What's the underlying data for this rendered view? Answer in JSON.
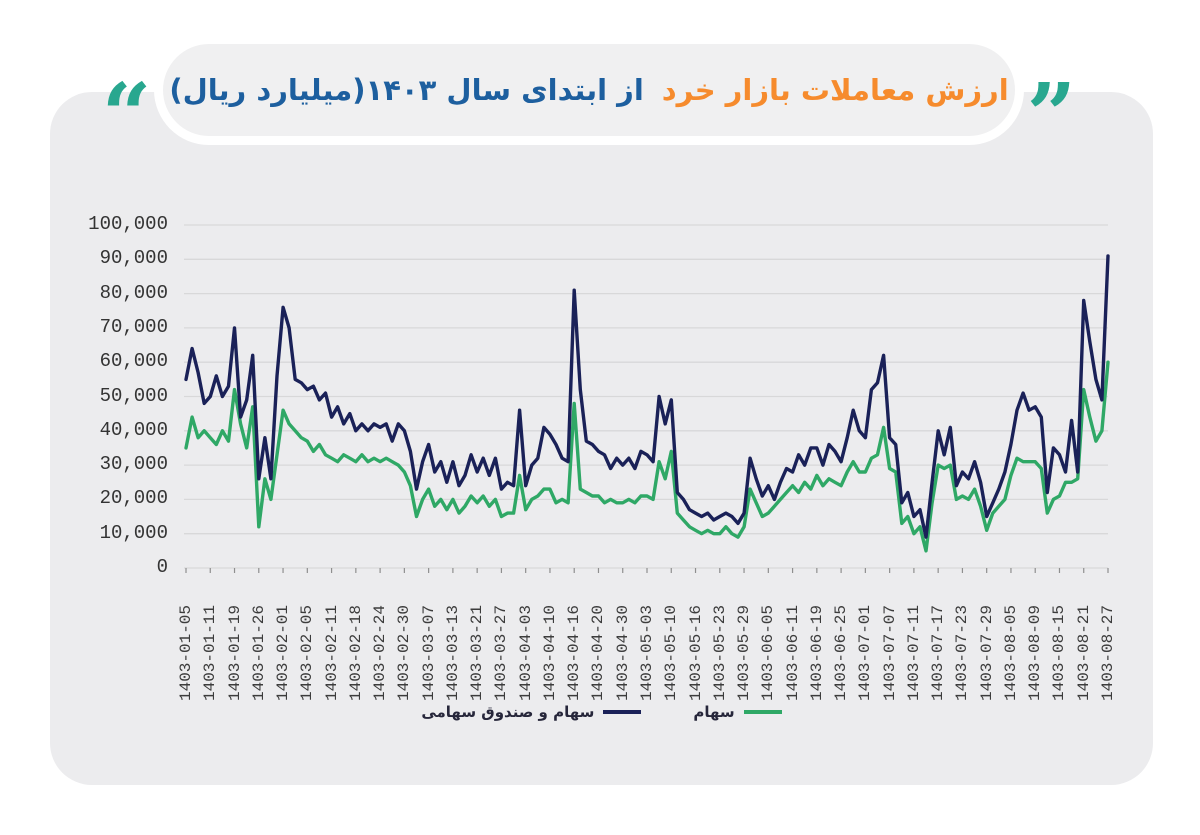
{
  "title": {
    "quote_right": "”",
    "quote_left": "“",
    "highlight": "ارزش معاملات بازار خرد",
    "rest": "از ابتدای سال ۱۴۰۳(میلیارد ریال)",
    "highlight_color": "#f68b2d",
    "rest_color": "#1d5f9f",
    "quote_color": "#28a78f"
  },
  "colors": {
    "page_background": "#ffffff",
    "card_background": "#ececee",
    "pill_background": "#f0f0f1",
    "gridline": "#d8d8d9",
    "tick_text": "#3c3c3c",
    "series_fund": "#1a2158",
    "series_stock": "#2fa866"
  },
  "chart_data": {
    "type": "line",
    "title": "ارزش معاملات بازار خرد از ابتدای سال ۱۴۰۳(میلیارد ریال)",
    "xlabel": "",
    "ylabel": "",
    "unit": "میلیارد ریال",
    "ylim": [
      0,
      100000
    ],
    "yticks": [
      0,
      10000,
      20000,
      30000,
      40000,
      50000,
      60000,
      70000,
      80000,
      90000,
      100000
    ],
    "grid": "horizontal",
    "grid_color": "#d8d8d9",
    "legend_position": "bottom",
    "tick_every": 4,
    "x_tick_labels": [
      "1403-01-05",
      "1403-01-11",
      "1403-01-19",
      "1403-01-26",
      "1403-02-01",
      "1403-02-05",
      "1403-02-11",
      "1403-02-18",
      "1403-02-24",
      "1403-02-30",
      "1403-03-07",
      "1403-03-13",
      "1403-03-21",
      "1403-03-27",
      "1403-04-03",
      "1403-04-10",
      "1403-04-16",
      "1403-04-20",
      "1403-04-30",
      "1403-05-03",
      "1403-05-10",
      "1403-05-16",
      "1403-05-23",
      "1403-05-29",
      "1403-06-05",
      "1403-06-11",
      "1403-06-19",
      "1403-06-25",
      "1403-07-01",
      "1403-07-07",
      "1403-07-11",
      "1403-07-17",
      "1403-07-23",
      "1403-07-29",
      "1403-08-05",
      "1403-08-09",
      "1403-08-15",
      "1403-08-21",
      "1403-08-27"
    ],
    "series": [
      {
        "name": "سهام و صندوق سهامی",
        "color": "#1a2158",
        "values": [
          55000,
          64000,
          57000,
          48000,
          50000,
          56000,
          50000,
          53000,
          70000,
          44000,
          49000,
          62000,
          26000,
          38000,
          26000,
          56000,
          76000,
          70000,
          55000,
          54000,
          52000,
          53000,
          49000,
          51000,
          44000,
          47000,
          42000,
          45000,
          40000,
          42000,
          40000,
          42000,
          41000,
          42000,
          37000,
          42000,
          40000,
          34000,
          23000,
          31000,
          36000,
          28000,
          31000,
          25000,
          31000,
          24000,
          27000,
          33000,
          28000,
          32000,
          27000,
          32000,
          23000,
          25000,
          24000,
          46000,
          24000,
          30000,
          32000,
          41000,
          39000,
          36000,
          32000,
          31000,
          81000,
          52000,
          37000,
          36000,
          34000,
          33000,
          29000,
          32000,
          30000,
          32000,
          29000,
          34000,
          33000,
          31000,
          50000,
          42000,
          49000,
          22000,
          20000,
          17000,
          16000,
          15000,
          16000,
          14000,
          15000,
          16000,
          15000,
          13000,
          16000,
          32000,
          26000,
          21000,
          24000,
          20000,
          25000,
          29000,
          28000,
          33000,
          30000,
          35000,
          35000,
          30000,
          36000,
          34000,
          31000,
          38000,
          46000,
          40000,
          38000,
          52000,
          54000,
          62000,
          38000,
          36000,
          19000,
          22000,
          15000,
          17000,
          9000,
          25000,
          40000,
          33000,
          41000,
          24000,
          28000,
          26000,
          31000,
          25000,
          15000,
          19000,
          23000,
          28000,
          36000,
          46000,
          51000,
          46000,
          47000,
          44000,
          22000,
          35000,
          33000,
          28000,
          43000,
          28000,
          78000,
          66000,
          55000,
          49000,
          91000
        ]
      },
      {
        "name": "سهام",
        "color": "#2fa866",
        "values": [
          35000,
          44000,
          38000,
          40000,
          38000,
          36000,
          40000,
          37000,
          52000,
          42000,
          35000,
          47000,
          12000,
          26000,
          20000,
          33000,
          46000,
          42000,
          40000,
          38000,
          37000,
          34000,
          36000,
          33000,
          32000,
          31000,
          33000,
          32000,
          31000,
          33000,
          31000,
          32000,
          31000,
          32000,
          31000,
          30000,
          28000,
          24000,
          15000,
          20000,
          23000,
          18000,
          20000,
          17000,
          20000,
          16000,
          18000,
          21000,
          19000,
          21000,
          18000,
          20000,
          15000,
          16000,
          16000,
          27000,
          17000,
          20000,
          21000,
          23000,
          23000,
          19000,
          20000,
          19000,
          48000,
          23000,
          22000,
          21000,
          21000,
          19000,
          20000,
          19000,
          19000,
          20000,
          19000,
          21000,
          21000,
          20000,
          31000,
          26000,
          34000,
          16000,
          14000,
          12000,
          11000,
          10000,
          11000,
          10000,
          10000,
          12000,
          10000,
          9000,
          12000,
          23000,
          19000,
          15000,
          16000,
          18000,
          20000,
          22000,
          24000,
          22000,
          25000,
          23000,
          27000,
          24000,
          26000,
          25000,
          24000,
          28000,
          31000,
          28000,
          28000,
          32000,
          33000,
          41000,
          29000,
          28000,
          13000,
          15000,
          10000,
          12000,
          5000,
          19000,
          30000,
          29000,
          30000,
          20000,
          21000,
          20000,
          23000,
          18000,
          11000,
          16000,
          18000,
          20000,
          27000,
          32000,
          31000,
          31000,
          31000,
          29000,
          16000,
          20000,
          21000,
          25000,
          25000,
          26000,
          52000,
          44000,
          37000,
          40000,
          60000
        ]
      }
    ]
  }
}
